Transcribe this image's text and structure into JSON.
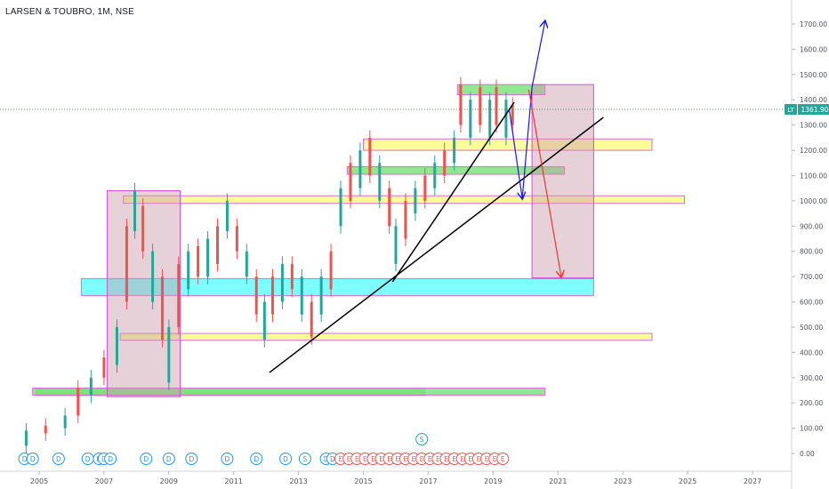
{
  "header": {
    "title": "LARSEN & TOUBRO, 1M, NSE"
  },
  "chart_data": {
    "type": "candlestick",
    "title": "LARSEN & TOUBRO, 1M, NSE",
    "symbol": "LT",
    "last_price": "1361.90",
    "x_ticks": [
      "2005",
      "2007",
      "2009",
      "2011",
      "2013",
      "2015",
      "2017",
      "2019",
      "2021",
      "2023",
      "2025",
      "2027"
    ],
    "y_ticks": [
      "0.00",
      "100.00",
      "200.00",
      "300.00",
      "400.00",
      "500.00",
      "600.00",
      "700.00",
      "800.00",
      "900.00",
      "1000.00",
      "1100.00",
      "1200.00",
      "1300.00",
      "1400.00",
      "1500.00",
      "1600.00",
      "1700.00"
    ],
    "xlim": [
      2004.3,
      2028.3
    ],
    "ylim": [
      -50,
      1780
    ],
    "colors": {
      "up": "#26a69a",
      "down": "#ef5350",
      "price_line": "#3c8a3c",
      "price_label": "#26a69a"
    },
    "candles": [
      [
        2004.6,
        30,
        90
      ],
      [
        2005.2,
        80,
        110
      ],
      [
        2005.8,
        100,
        150
      ],
      [
        2006.2,
        150,
        260
      ],
      [
        2006.6,
        230,
        300
      ],
      [
        2007.0,
        300,
        380
      ],
      [
        2007.4,
        350,
        500
      ],
      [
        2007.7,
        600,
        900
      ],
      [
        2007.95,
        880,
        1040
      ],
      [
        2008.2,
        800,
        980
      ],
      [
        2008.5,
        600,
        800
      ],
      [
        2008.8,
        450,
        700
      ],
      [
        2009.0,
        280,
        500
      ],
      [
        2009.3,
        500,
        750
      ],
      [
        2009.6,
        650,
        800
      ],
      [
        2009.9,
        700,
        820
      ],
      [
        2010.2,
        700,
        850
      ],
      [
        2010.5,
        750,
        900
      ],
      [
        2010.8,
        880,
        1000
      ],
      [
        2011.1,
        800,
        900
      ],
      [
        2011.4,
        700,
        800
      ],
      [
        2011.7,
        550,
        700
      ],
      [
        2011.95,
        450,
        600
      ],
      [
        2012.2,
        550,
        700
      ],
      [
        2012.5,
        600,
        750
      ],
      [
        2012.8,
        650,
        750
      ],
      [
        2013.1,
        550,
        700
      ],
      [
        2013.4,
        460,
        600
      ],
      [
        2013.7,
        550,
        700
      ],
      [
        2014.0,
        650,
        800
      ],
      [
        2014.3,
        900,
        1050
      ],
      [
        2014.6,
        1000,
        1150
      ],
      [
        2014.9,
        1050,
        1200
      ],
      [
        2015.2,
        1100,
        1250
      ],
      [
        2015.5,
        1000,
        1150
      ],
      [
        2015.8,
        900,
        1050
      ],
      [
        2016.0,
        750,
        900
      ],
      [
        2016.3,
        850,
        1000
      ],
      [
        2016.6,
        950,
        1050
      ],
      [
        2016.9,
        1000,
        1100
      ],
      [
        2017.2,
        1050,
        1150
      ],
      [
        2017.5,
        1100,
        1200
      ],
      [
        2017.8,
        1150,
        1250
      ],
      [
        2018.0,
        1300,
        1460
      ],
      [
        2018.3,
        1250,
        1400
      ],
      [
        2018.6,
        1300,
        1450
      ],
      [
        2018.9,
        1250,
        1400
      ],
      [
        2019.1,
        1300,
        1450
      ],
      [
        2019.4,
        1250,
        1400
      ],
      [
        2019.6,
        1300,
        1380
      ]
    ],
    "zones": [
      {
        "x1": 2004.9,
        "x2": 2016.9,
        "y1": 230,
        "y2": 258,
        "color": "#5ce65c"
      },
      {
        "x1": 2004.9,
        "x2": 2016.9,
        "y1": 230,
        "y2": 258,
        "color": "#5ce65c"
      },
      {
        "x1": 2004.8,
        "x2": 2020.6,
        "y1": 231,
        "y2": 259,
        "color": "#7ee47e"
      },
      {
        "x1": 2007.5,
        "x2": 2023.9,
        "y1": 448,
        "y2": 475,
        "color": "#ffff88"
      },
      {
        "x1": 2006.3,
        "x2": 2022.1,
        "y1": 625,
        "y2": 692,
        "color": "#66ffff"
      },
      {
        "x1": 2007.6,
        "x2": 2024.9,
        "y1": 990,
        "y2": 1020,
        "color": "#ffff88"
      },
      {
        "x1": 2014.5,
        "x2": 2021.2,
        "y1": 1105,
        "y2": 1135,
        "color": "#7ee47e"
      },
      {
        "x1": 2015.0,
        "x2": 2023.9,
        "y1": 1200,
        "y2": 1245,
        "color": "#ffff88"
      },
      {
        "x1": 2017.9,
        "x2": 2020.6,
        "y1": 1420,
        "y2": 1460,
        "color": "#7ee47e"
      }
    ],
    "boxes": [
      {
        "x1": 2007.1,
        "x2": 2009.35,
        "y1": 225,
        "y2": 1040
      },
      {
        "x1": 2020.2,
        "x2": 2022.1,
        "y1": 695,
        "y2": 1460
      }
    ],
    "trendlines": [
      {
        "x1": 2012.1,
        "y1": 320,
        "x2": 2022.4,
        "y2": 1330
      },
      {
        "x1": 2015.9,
        "y1": 680,
        "x2": 2019.65,
        "y2": 1390
      }
    ],
    "arrows": [
      {
        "x1": 2019.5,
        "y1": 1360,
        "x2": 2019.9,
        "y2": 1010,
        "color": "#1a1adc"
      },
      {
        "x1": 2019.9,
        "y1": 1010,
        "x2": 2020.2,
        "y2": 1450,
        "color": "#1a1adc"
      },
      {
        "x1": 2020.2,
        "y1": 1450,
        "x2": 2020.6,
        "y2": 1710,
        "color": "#1a1adc"
      },
      {
        "x1": 2020.1,
        "y1": 1440,
        "x2": 2021.1,
        "y2": 700,
        "color": "#e53935"
      }
    ],
    "event_markers": {
      "dividends": [
        2004.55,
        2004.8,
        2005.6,
        2006.5,
        2006.85,
        2007.0,
        2007.2,
        2008.3,
        2009.0,
        2009.7,
        2010.8,
        2011.7,
        2012.6,
        2013.85,
        2014.05
      ],
      "splits_top": [
        {
          "x": 2016.8,
          "label": "S"
        }
      ],
      "splits_bottom": [
        {
          "x": 2013.2,
          "label": "S"
        }
      ],
      "earnings": [
        2014.3,
        2014.55,
        2014.8,
        2015.05,
        2015.3,
        2015.55,
        2015.8,
        2016.05,
        2016.3,
        2016.55,
        2016.8,
        2017.05,
        2017.3,
        2017.55,
        2017.8,
        2018.05,
        2018.3,
        2018.55,
        2018.8,
        2019.05,
        2019.3
      ],
      "dividend_label": "D",
      "earnings_label": "E"
    }
  }
}
